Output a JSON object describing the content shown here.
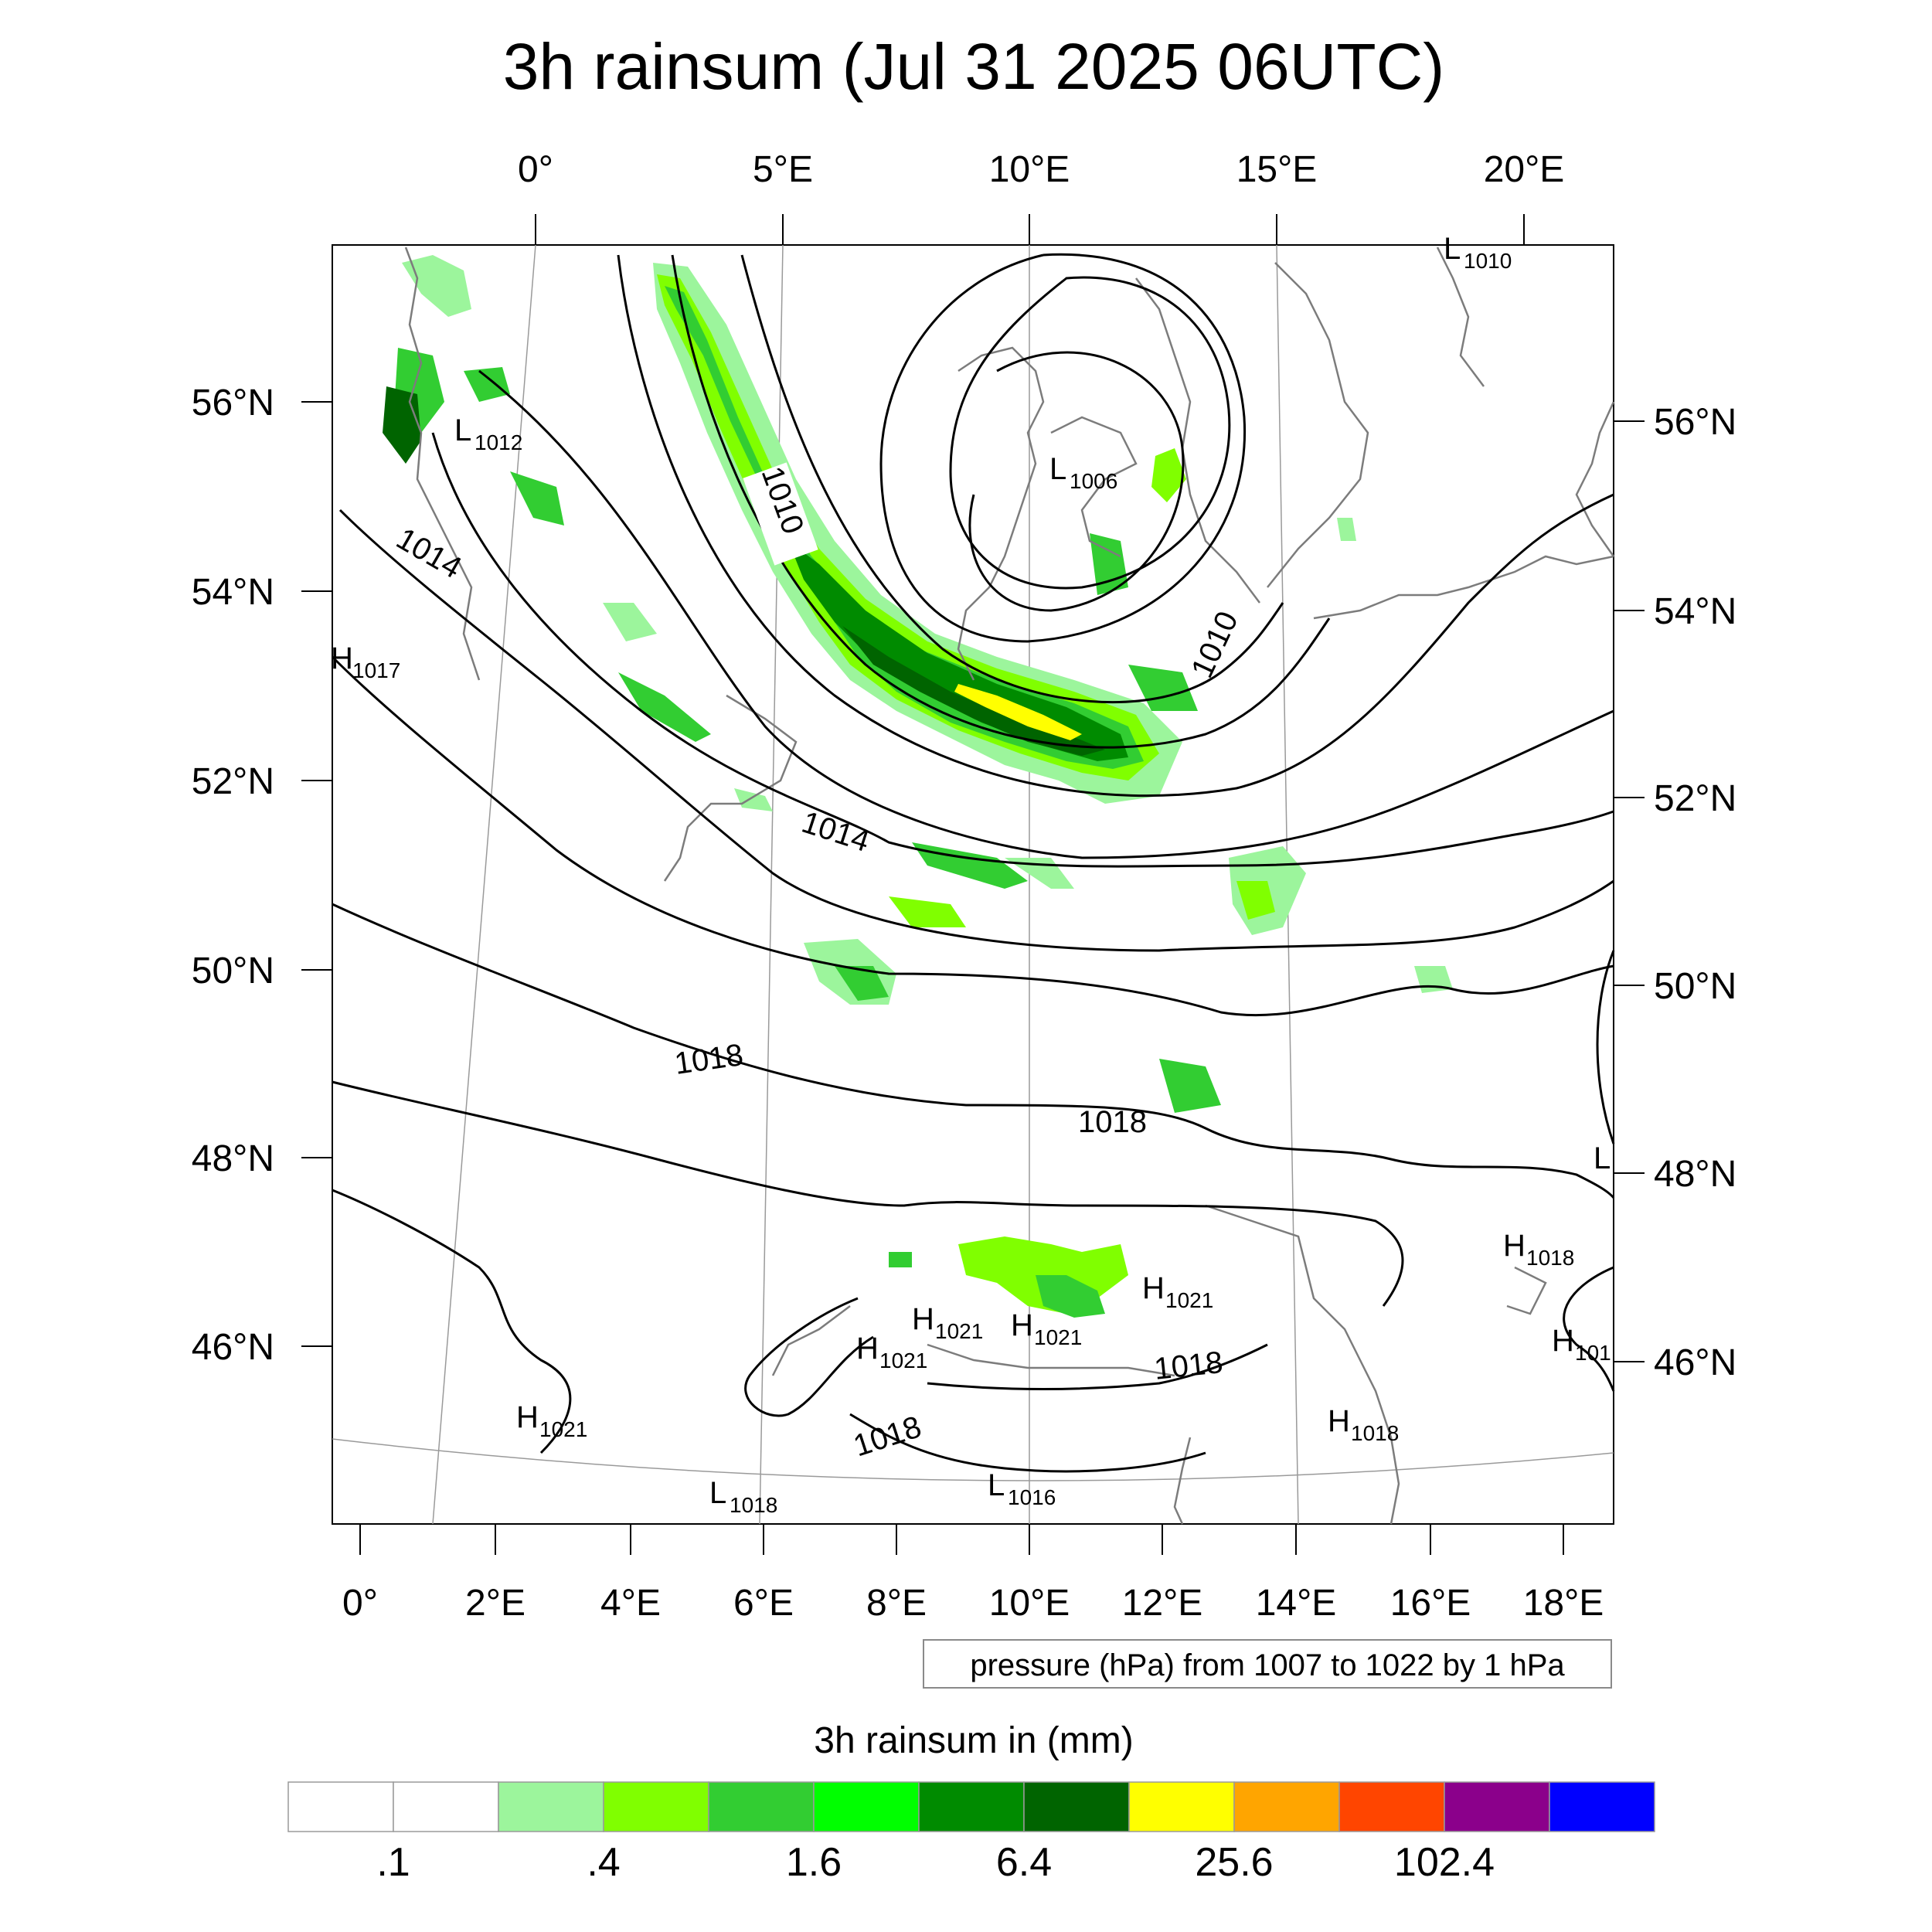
{
  "title": "3h rainsum (Jul 31 2025 06UTC)",
  "top_lon_labels": [
    "0°",
    "5°E",
    "10°E",
    "15°E",
    "20°E"
  ],
  "bottom_lon_labels": [
    "0°",
    "2°E",
    "4°E",
    "6°E",
    "8°E",
    "10°E",
    "12°E",
    "14°E",
    "16°E",
    "18°E"
  ],
  "left_lat_labels": [
    "56°N",
    "54°N",
    "52°N",
    "50°N",
    "48°N",
    "46°N"
  ],
  "right_lat_labels": [
    "56°N",
    "54°N",
    "52°N",
    "50°N",
    "48°N",
    "46°N"
  ],
  "pressure_systems": [
    {
      "kind": "L",
      "value": "1012"
    },
    {
      "kind": "L",
      "value": "1006"
    },
    {
      "kind": "L",
      "value": "1010"
    },
    {
      "kind": "H",
      "value": "1017"
    },
    {
      "kind": "H",
      "value": "1018"
    },
    {
      "kind": "H",
      "value": "101"
    },
    {
      "kind": "H",
      "value": "1021"
    },
    {
      "kind": "H",
      "value": "1021"
    },
    {
      "kind": "H",
      "value": "1021"
    },
    {
      "kind": "H",
      "value": "1021"
    },
    {
      "kind": "H",
      "value": "1021"
    },
    {
      "kind": "H",
      "value": "1018"
    },
    {
      "kind": "L",
      "value": "1018"
    },
    {
      "kind": "L",
      "value": "1016"
    },
    {
      "kind": "L",
      "value": ""
    }
  ],
  "contour_labels": [
    "1014",
    "1010",
    "1010",
    "1014",
    "1018",
    "1018",
    "1018",
    "1018"
  ],
  "contour_note": "pressure (hPa) from 1007 to 1022 by 1 hPa",
  "colorbar": {
    "title": "3h rainsum in (mm)",
    "colors": [
      "#ffffff",
      "#ffffff",
      "#9cf59c",
      "#80ff00",
      "#32cd32",
      "#00ff00",
      "#008b00",
      "#006400",
      "#ffff00",
      "#ffa500",
      "#ff4500",
      "#8b008b",
      "#0000ff"
    ],
    "labels": [
      ".1",
      ".4",
      "1.6",
      "6.4",
      "25.6",
      "102.4"
    ]
  },
  "rain_colors": {
    "light": "#9cf59c",
    "mid": "#80ff00",
    "moderate": "#32cd32",
    "heavy": "#008b00",
    "very_heavy": "#006400",
    "extreme": "#ffff00"
  }
}
